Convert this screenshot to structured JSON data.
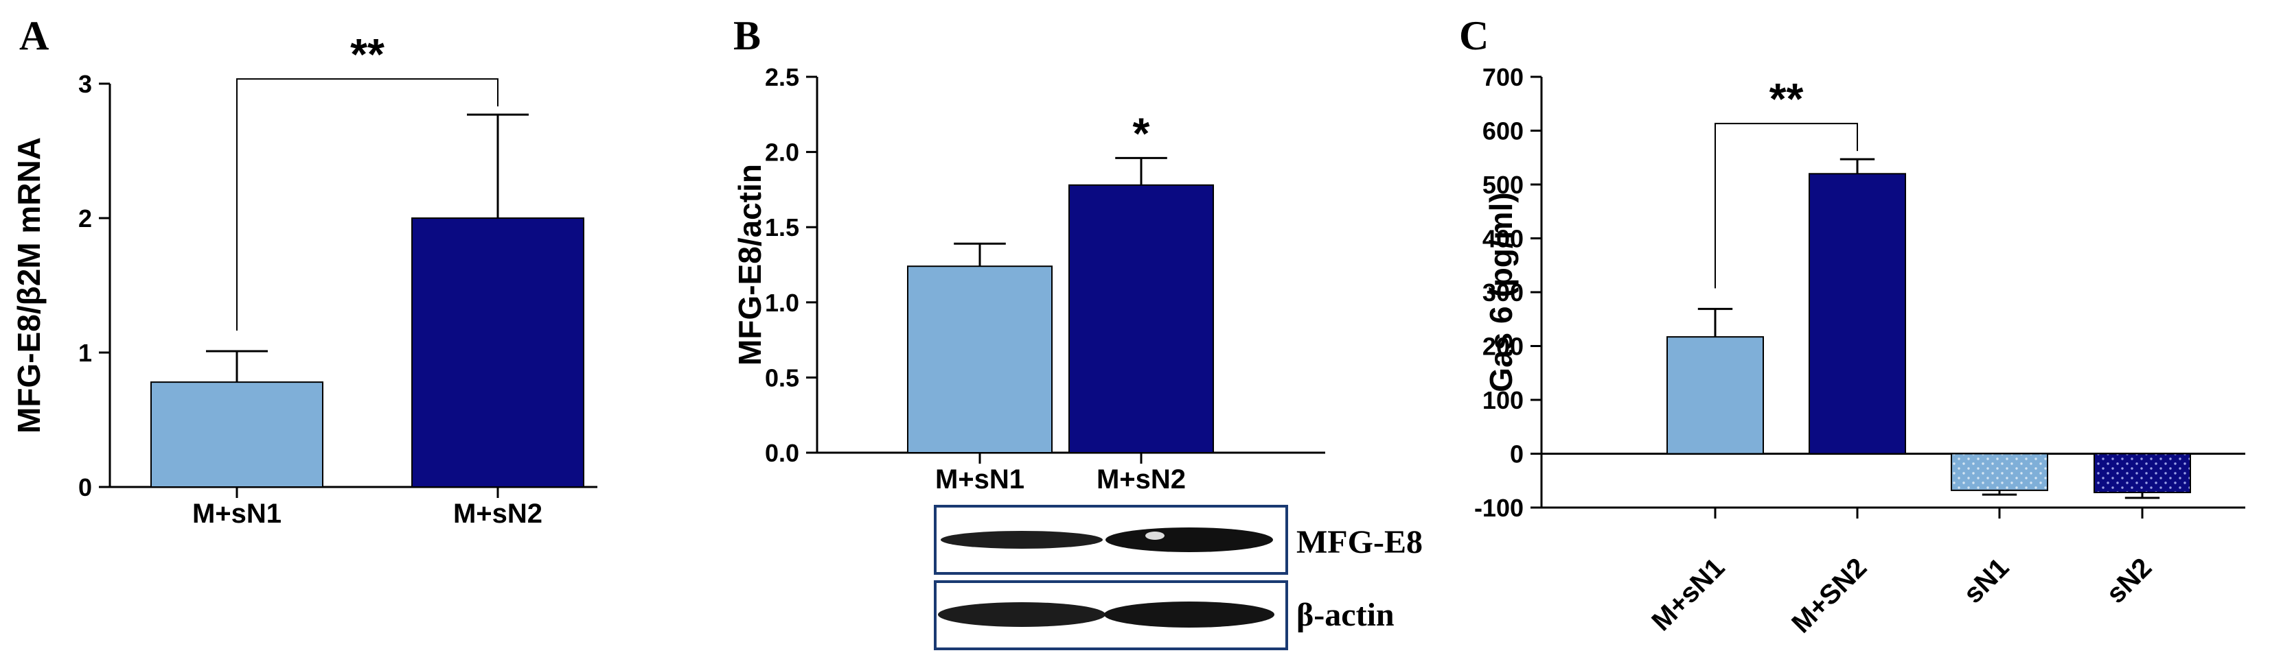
{
  "colors": {
    "light_blue": "#7fafd8",
    "navy": "#0a0a82",
    "axis": "#000000",
    "blot_frame": "#1a3a72"
  },
  "panels": {
    "A": {
      "letter": "A",
      "chart_data": {
        "type": "bar",
        "title": "",
        "xlabel": "",
        "ylabel": "MFG-E8/β2M mRNA",
        "categories": [
          "M+sN1",
          "M+sN2"
        ],
        "values": [
          0.78,
          2.0
        ],
        "errors": [
          0.23,
          0.77
        ],
        "colors": [
          "#7fafd8",
          "#0a0a82"
        ],
        "ylim": [
          0,
          3
        ],
        "yticks": [
          0,
          1,
          2,
          3
        ],
        "ytick_labels": [
          "0",
          "1",
          "2",
          "3"
        ],
        "significance": [
          {
            "between": [
              "M+sN1",
              "M+sN2"
            ],
            "label": "**"
          }
        ]
      }
    },
    "B": {
      "letter": "B",
      "chart_data": {
        "type": "bar",
        "title": "",
        "xlabel": "",
        "ylabel": "MFG-E8/actin",
        "categories": [
          "M+sN1",
          "M+sN2"
        ],
        "values": [
          1.24,
          1.78
        ],
        "errors": [
          0.15,
          0.18
        ],
        "colors": [
          "#7fafd8",
          "#0a0a82"
        ],
        "ylim": [
          0,
          2.5
        ],
        "yticks": [
          0,
          0.5,
          1.0,
          1.5,
          2.0,
          2.5
        ],
        "ytick_labels": [
          "0.0",
          "0.5",
          "1.0",
          "1.5",
          "2.0",
          "2.5"
        ],
        "significance": [
          {
            "on": "M+sN2",
            "label": "*"
          }
        ]
      },
      "blot_labels": [
        "MFG-E8",
        "β-actin"
      ]
    },
    "C": {
      "letter": "C",
      "chart_data": {
        "type": "bar",
        "title": "",
        "xlabel": "",
        "ylabel": "Gas 6 (pg/ml)",
        "categories": [
          "M+sN1",
          "M+SN2",
          "sN1",
          "sN2"
        ],
        "values": [
          217,
          520,
          -68,
          -72
        ],
        "errors": [
          52,
          27,
          8,
          10
        ],
        "colors": [
          "#7fafd8",
          "#0a0a82",
          "#7fafd8",
          "#0a0a82"
        ],
        "patterned": [
          false,
          false,
          true,
          true
        ],
        "ylim": [
          -100,
          700
        ],
        "yticks": [
          -100,
          0,
          100,
          200,
          300,
          400,
          500,
          600,
          700
        ],
        "ytick_labels": [
          "-100",
          "0",
          "100",
          "200",
          "300",
          "400",
          "500",
          "600",
          "700"
        ],
        "significance": [
          {
            "between": [
              "M+sN1",
              "M+SN2"
            ],
            "label": "**"
          }
        ]
      }
    }
  }
}
